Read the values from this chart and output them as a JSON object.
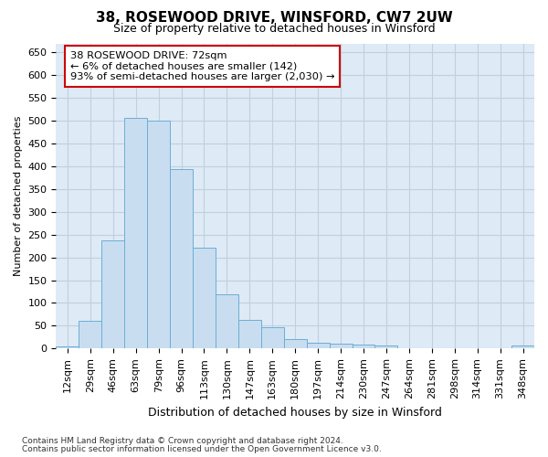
{
  "title": "38, ROSEWOOD DRIVE, WINSFORD, CW7 2UW",
  "subtitle": "Size of property relative to detached houses in Winsford",
  "xlabel": "Distribution of detached houses by size in Winsford",
  "ylabel": "Number of detached properties",
  "footnote1": "Contains HM Land Registry data © Crown copyright and database right 2024.",
  "footnote2": "Contains public sector information licensed under the Open Government Licence v3.0.",
  "bar_labels": [
    "12sqm",
    "29sqm",
    "46sqm",
    "63sqm",
    "79sqm",
    "96sqm",
    "113sqm",
    "130sqm",
    "147sqm",
    "163sqm",
    "180sqm",
    "197sqm",
    "214sqm",
    "230sqm",
    "247sqm",
    "264sqm",
    "281sqm",
    "298sqm",
    "314sqm",
    "331sqm",
    "348sqm"
  ],
  "bar_values": [
    5,
    60,
    238,
    507,
    500,
    395,
    222,
    120,
    62,
    46,
    20,
    12,
    10,
    8,
    7,
    0,
    0,
    0,
    0,
    0,
    7
  ],
  "bar_color": "#c9ddf0",
  "bar_edge_color": "#6baed6",
  "ylim": [
    0,
    670
  ],
  "yticks": [
    0,
    50,
    100,
    150,
    200,
    250,
    300,
    350,
    400,
    450,
    500,
    550,
    600,
    650
  ],
  "annotation_line1": "38 ROSEWOOD DRIVE: 72sqm",
  "annotation_line2": "← 6% of detached houses are smaller (142)",
  "annotation_line3": "93% of semi-detached houses are larger (2,030) →",
  "annotation_box_color": "#ffffff",
  "annotation_box_edge": "#cc0000",
  "grid_color": "#c0d0e0",
  "fig_bg_color": "#ffffff",
  "plot_bg_color": "#deeaf5",
  "title_fontsize": 11,
  "subtitle_fontsize": 9,
  "tick_fontsize": 8,
  "ylabel_fontsize": 8,
  "xlabel_fontsize": 9
}
